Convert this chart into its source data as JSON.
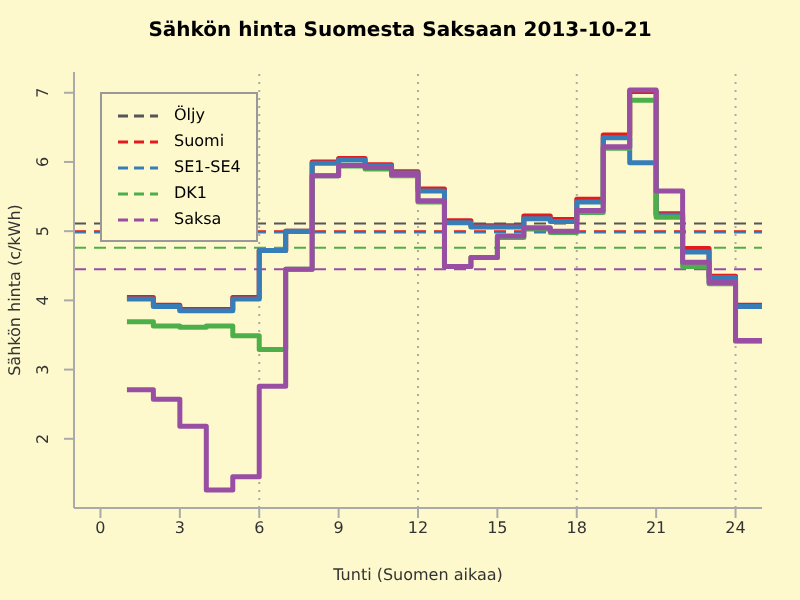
{
  "chart_data": {
    "type": "step",
    "title": "Sähkön hinta Suomesta Saksaan 2013-10-21",
    "xlabel": "Tunti (Suomen aikaa)",
    "ylabel": "Sähkön hinta (c/kWh)",
    "x": [
      1,
      2,
      3,
      4,
      5,
      6,
      7,
      8,
      9,
      10,
      11,
      12,
      13,
      14,
      15,
      16,
      17,
      18,
      19,
      20,
      21,
      22,
      23,
      24,
      25
    ],
    "xlim": [
      -1,
      25
    ],
    "xticks": [
      0,
      3,
      6,
      9,
      12,
      15,
      18,
      21,
      24
    ],
    "ylim": [
      1.0,
      7.3
    ],
    "yticks": [
      2,
      3,
      4,
      5,
      6,
      7
    ],
    "legend": "top left",
    "line_style": "solid",
    "marker": "none",
    "series": [
      {
        "name": "Suomi",
        "color": "#e41a1c",
        "values": [
          4.04,
          3.93,
          3.87,
          3.87,
          4.04,
          4.72,
          5.0,
          6.0,
          6.05,
          5.96,
          5.86,
          5.61,
          5.15,
          5.08,
          5.08,
          5.22,
          5.17,
          5.46,
          6.39,
          7.02,
          5.25,
          4.75,
          4.35,
          3.93,
          3.93
        ]
      },
      {
        "name": "SE1-SE4",
        "color": "#377eb8",
        "values": [
          4.02,
          3.91,
          3.85,
          3.85,
          4.02,
          4.72,
          5.0,
          5.98,
          6.03,
          5.94,
          5.84,
          5.58,
          5.12,
          5.06,
          5.06,
          5.18,
          5.14,
          5.42,
          6.35,
          5.99,
          5.23,
          4.7,
          4.33,
          3.91,
          3.91
        ]
      },
      {
        "name": "DK1",
        "color": "#4daf4a",
        "values": [
          3.69,
          3.63,
          3.61,
          3.63,
          3.49,
          3.29,
          4.45,
          5.8,
          5.94,
          5.9,
          5.8,
          5.42,
          4.49,
          4.62,
          4.91,
          5.03,
          4.98,
          5.27,
          6.2,
          6.89,
          5.2,
          4.49,
          4.24,
          3.41,
          3.41
        ]
      },
      {
        "name": "Saksa",
        "color": "#984ea3",
        "values": [
          2.71,
          2.57,
          2.18,
          1.26,
          1.45,
          2.76,
          4.45,
          5.8,
          5.95,
          5.92,
          5.82,
          5.44,
          4.49,
          4.62,
          4.93,
          5.05,
          5.0,
          5.3,
          6.22,
          7.04,
          5.58,
          4.55,
          4.26,
          3.42,
          3.42
        ]
      }
    ],
    "ref_lines": [
      {
        "axis": "y",
        "value": 5.11,
        "label": "Öljy",
        "color": "#555555",
        "line_style": "dashed"
      },
      {
        "axis": "y",
        "value": 5.0,
        "color": "#e41a1c",
        "line_style": "dashed"
      },
      {
        "axis": "y",
        "value": 4.98,
        "color": "#377eb8",
        "line_style": "dashed"
      },
      {
        "axis": "y",
        "value": 4.76,
        "color": "#4daf4a",
        "line_style": "dashed"
      },
      {
        "axis": "y",
        "value": 4.45,
        "color": "#984ea3",
        "line_style": "dashed"
      },
      {
        "axis": "x",
        "value": 6,
        "color": "#aaaaaa",
        "line_style": "dotted"
      },
      {
        "axis": "x",
        "value": 12,
        "color": "#aaaaaa",
        "line_style": "dotted"
      },
      {
        "axis": "x",
        "value": 18,
        "color": "#aaaaaa",
        "line_style": "dotted"
      },
      {
        "axis": "x",
        "value": 24,
        "color": "#aaaaaa",
        "line_style": "dotted"
      }
    ]
  }
}
